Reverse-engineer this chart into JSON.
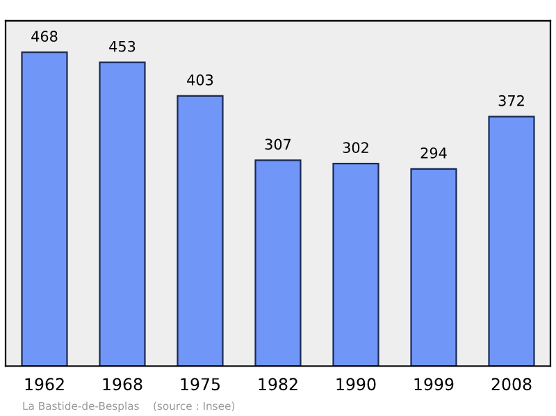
{
  "chart_data": {
    "type": "bar",
    "categories": [
      "1962",
      "1968",
      "1975",
      "1982",
      "1990",
      "1999",
      "2008"
    ],
    "values": [
      468,
      453,
      403,
      307,
      302,
      294,
      372
    ],
    "color": "#7097f7",
    "data_labels": true,
    "ylim": [
      0,
      515
    ],
    "tick_labels": "x",
    "grid": false,
    "legend": false,
    "annotations": [
      "La Bastide-de-Besplas    (source : Insee)"
    ]
  }
}
